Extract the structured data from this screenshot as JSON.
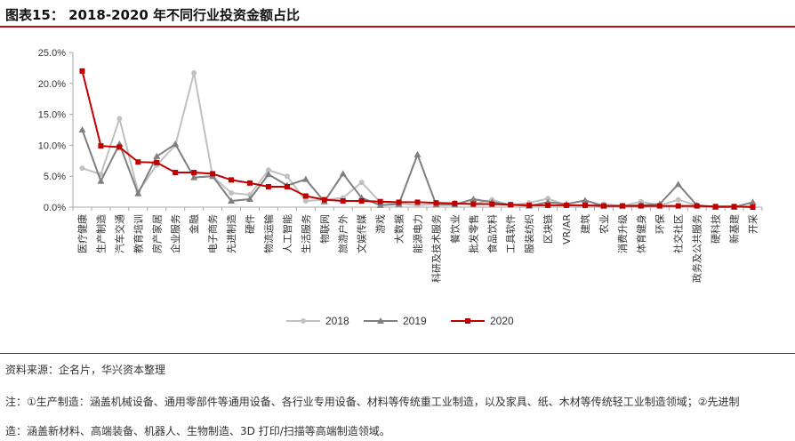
{
  "title": "图表15： 2018-2020 年不同行业投资金额占比",
  "source": "资料来源：企名片，华兴资本整理",
  "note_line1": "注：①生产制造：涵盖机械设备、通用零部件等通用设备、各行业专用设备、材料等传统重工业制造，以及家具、纸、木材等传统轻工业制造领域；②先进制",
  "note_line2": "造：涵盖新材料、高端装备、机器人、生物制造、3D 打印/扫描等高端制造领域。",
  "chart_data": {
    "type": "line",
    "title": "",
    "xlabel": "",
    "ylabel": "",
    "ylim": [
      0,
      25
    ],
    "y_ticks": [
      "0.0%",
      "5.0%",
      "10.0%",
      "15.0%",
      "20.0%",
      "25.0%"
    ],
    "grid": false,
    "legend_position": "bottom",
    "categories": [
      "医疗健康",
      "生产制造",
      "汽车交通",
      "教育培训",
      "房产家居",
      "企业服务",
      "金融",
      "电子商务",
      "先进制造",
      "硬件",
      "物流运输",
      "人工智能",
      "生活服务",
      "物联网",
      "旅游户外",
      "文娱传媒",
      "游戏",
      "大数据",
      "能源电力",
      "科研及技术服务",
      "餐饮业",
      "批发零售",
      "食品饮料",
      "工具软件",
      "服装纺织",
      "区块链",
      "VR/AR",
      "建筑",
      "农业",
      "消费升级",
      "体育健身",
      "环保",
      "社交社区",
      "政务及公共服务",
      "硬科技",
      "新基建",
      "开采"
    ],
    "series": [
      {
        "name": "2018",
        "color": "#c0c0c0",
        "marker": "circle",
        "values": [
          6.3,
          5.3,
          14.3,
          2.5,
          6.8,
          10.0,
          21.7,
          5.0,
          2.3,
          2.0,
          6.0,
          5.0,
          1.0,
          1.2,
          1.5,
          4.0,
          0.8,
          0.6,
          0.3,
          0.5,
          0.7,
          0.5,
          1.2,
          0.3,
          0.7,
          1.4,
          0.3,
          0.2,
          0.5,
          0.2,
          0.9,
          0.3,
          1.2,
          0.3,
          0.1,
          0.0,
          0.2
        ]
      },
      {
        "name": "2019",
        "color": "#7f7f7f",
        "marker": "triangle",
        "values": [
          12.5,
          4.2,
          10.2,
          2.2,
          8.2,
          10.2,
          4.8,
          5.0,
          1.0,
          1.3,
          5.3,
          3.5,
          4.5,
          0.9,
          5.4,
          1.5,
          0.3,
          0.5,
          8.5,
          0.4,
          0.4,
          1.3,
          0.8,
          0.4,
          0.2,
          0.8,
          0.5,
          1.1,
          0.2,
          0.2,
          0.3,
          0.5,
          3.7,
          0.3,
          0.0,
          0.0,
          0.8
        ]
      },
      {
        "name": "2020",
        "color": "#c00000",
        "marker": "square",
        "values": [
          22.0,
          9.9,
          9.7,
          7.3,
          7.2,
          5.6,
          5.6,
          5.4,
          4.4,
          3.9,
          3.3,
          3.3,
          1.8,
          1.2,
          1.0,
          1.0,
          0.9,
          0.8,
          0.8,
          0.7,
          0.6,
          0.5,
          0.5,
          0.4,
          0.3,
          0.3,
          0.3,
          0.3,
          0.2,
          0.2,
          0.2,
          0.2,
          0.2,
          0.2,
          0.1,
          0.1,
          0.0
        ]
      }
    ]
  }
}
